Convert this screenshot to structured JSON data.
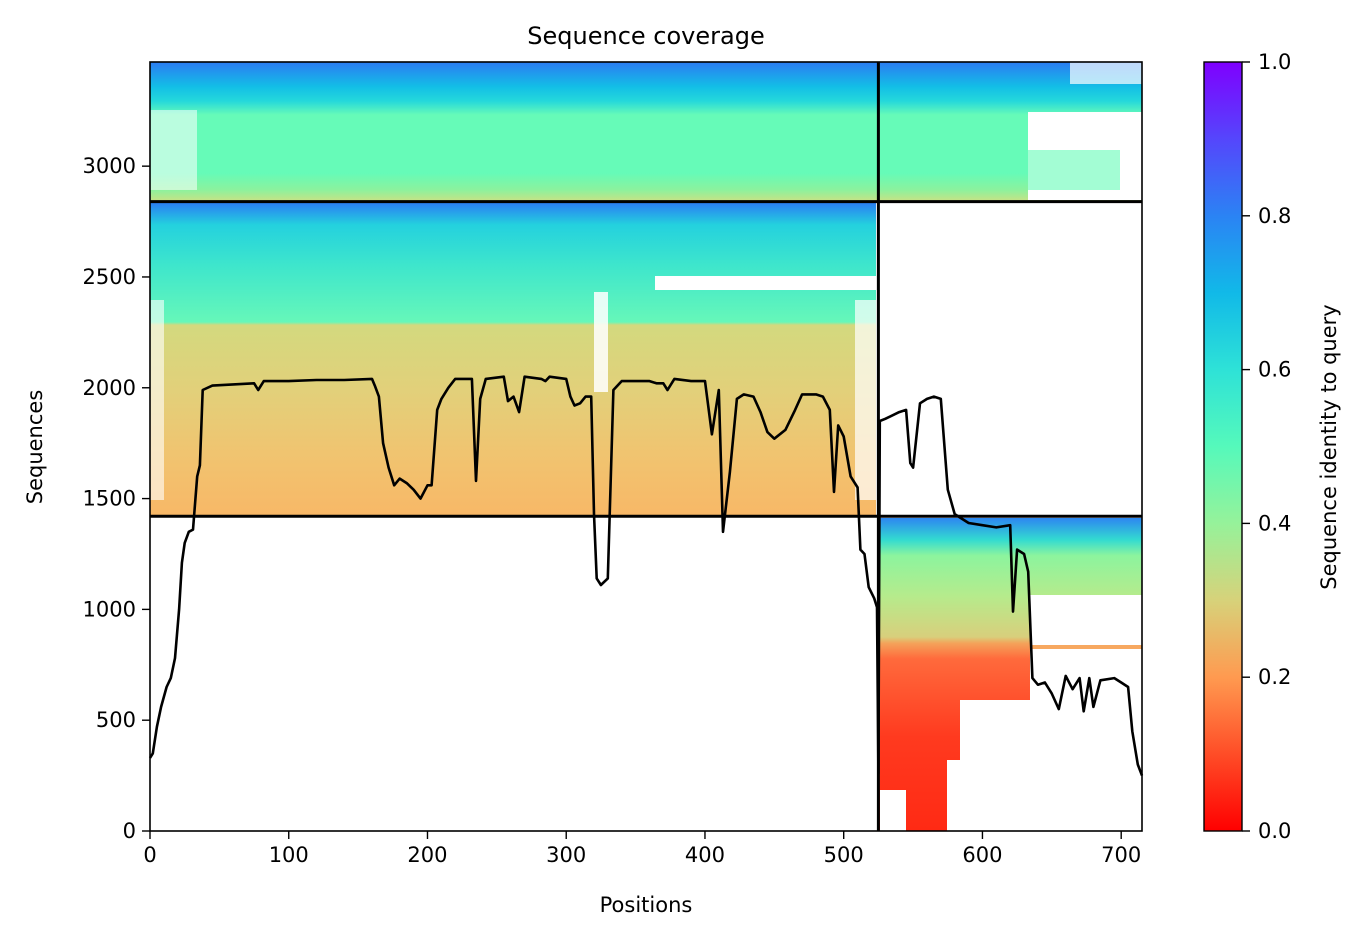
{
  "chart_data": {
    "type": "heatmap",
    "title": "Sequence coverage",
    "xlabel": "Positions",
    "ylabel": "Sequences",
    "xlim": [
      0,
      715
    ],
    "ylim": [
      0,
      3470
    ],
    "x_ticks": [
      "0",
      "100",
      "200",
      "300",
      "400",
      "500",
      "600",
      "700"
    ],
    "y_ticks": [
      "0",
      "500",
      "1000",
      "1500",
      "2000",
      "2500",
      "3000"
    ],
    "x_tick_values": [
      0,
      100,
      200,
      300,
      400,
      500,
      600,
      700
    ],
    "y_tick_values": [
      0,
      500,
      1000,
      1500,
      2000,
      2500,
      3000
    ],
    "colorbar": {
      "label": "Sequence identity to query",
      "colormap": "rainbow_r",
      "range": [
        0.0,
        1.0
      ],
      "ticks": [
        "0.0",
        "0.2",
        "0.4",
        "0.6",
        "0.8",
        "1.0"
      ],
      "tick_values": [
        0.0,
        0.2,
        0.4,
        0.6,
        0.8,
        1.0
      ]
    },
    "chain_boundary_position": 525,
    "group_boundaries_sequences": [
      1420,
      2840
    ],
    "blocks": [
      {
        "group": "bottom",
        "x_range": [
          0,
          525
        ],
        "seq_range": [
          0,
          1420
        ],
        "coverage": "none"
      },
      {
        "group": "bottom",
        "x_range": [
          525,
          715
        ],
        "seq_range": [
          0,
          1420
        ],
        "identity_range": [
          0.05,
          0.85
        ]
      },
      {
        "group": "middle",
        "x_range": [
          0,
          525
        ],
        "seq_range": [
          1420,
          2840
        ],
        "identity_range": [
          0.22,
          0.85
        ]
      },
      {
        "group": "middle",
        "x_range": [
          525,
          715
        ],
        "seq_range": [
          1420,
          2840
        ],
        "coverage": "none"
      },
      {
        "group": "top",
        "x_range": [
          0,
          525
        ],
        "seq_range": [
          2840,
          3470
        ],
        "identity_range": [
          0.35,
          0.85
        ]
      },
      {
        "group": "top",
        "x_range": [
          525,
          715
        ],
        "seq_range": [
          2840,
          3470
        ],
        "identity_range": [
          0.4,
          0.85
        ]
      }
    ],
    "coverage_series": {
      "name": "",
      "color": "#000000",
      "points": [
        [
          0,
          330
        ],
        [
          2,
          350
        ],
        [
          5,
          470
        ],
        [
          8,
          560
        ],
        [
          12,
          650
        ],
        [
          15,
          690
        ],
        [
          18,
          780
        ],
        [
          21,
          1000
        ],
        [
          23,
          1210
        ],
        [
          25,
          1300
        ],
        [
          28,
          1350
        ],
        [
          31,
          1360
        ],
        [
          34,
          1600
        ],
        [
          36,
          1650
        ],
        [
          38,
          1990
        ],
        [
          45,
          2010
        ],
        [
          60,
          2015
        ],
        [
          75,
          2020
        ],
        [
          78,
          1990
        ],
        [
          82,
          2030
        ],
        [
          100,
          2030
        ],
        [
          120,
          2035
        ],
        [
          140,
          2035
        ],
        [
          160,
          2040
        ],
        [
          162,
          2010
        ],
        [
          165,
          1960
        ],
        [
          168,
          1750
        ],
        [
          172,
          1640
        ],
        [
          176,
          1560
        ],
        [
          180,
          1590
        ],
        [
          185,
          1570
        ],
        [
          190,
          1540
        ],
        [
          195,
          1500
        ],
        [
          200,
          1560
        ],
        [
          203,
          1560
        ],
        [
          207,
          1900
        ],
        [
          210,
          1950
        ],
        [
          215,
          2000
        ],
        [
          220,
          2040
        ],
        [
          232,
          2040
        ],
        [
          235,
          1580
        ],
        [
          238,
          1950
        ],
        [
          242,
          2040
        ],
        [
          255,
          2050
        ],
        [
          258,
          1940
        ],
        [
          262,
          1960
        ],
        [
          266,
          1890
        ],
        [
          270,
          2050
        ],
        [
          282,
          2040
        ],
        [
          285,
          2030
        ],
        [
          288,
          2050
        ],
        [
          300,
          2040
        ],
        [
          303,
          1960
        ],
        [
          306,
          1920
        ],
        [
          310,
          1930
        ],
        [
          314,
          1960
        ],
        [
          318,
          1960
        ],
        [
          320,
          1430
        ],
        [
          322,
          1140
        ],
        [
          325,
          1110
        ],
        [
          330,
          1140
        ],
        [
          334,
          1990
        ],
        [
          340,
          2030
        ],
        [
          360,
          2030
        ],
        [
          365,
          2020
        ],
        [
          370,
          2020
        ],
        [
          373,
          1990
        ],
        [
          378,
          2040
        ],
        [
          390,
          2030
        ],
        [
          400,
          2030
        ],
        [
          405,
          1790
        ],
        [
          410,
          1990
        ],
        [
          413,
          1350
        ],
        [
          418,
          1620
        ],
        [
          423,
          1950
        ],
        [
          428,
          1970
        ],
        [
          435,
          1960
        ],
        [
          440,
          1890
        ],
        [
          445,
          1800
        ],
        [
          450,
          1770
        ],
        [
          458,
          1810
        ],
        [
          465,
          1900
        ],
        [
          470,
          1970
        ],
        [
          480,
          1970
        ],
        [
          485,
          1960
        ],
        [
          490,
          1900
        ],
        [
          493,
          1530
        ],
        [
          496,
          1830
        ],
        [
          500,
          1780
        ],
        [
          505,
          1600
        ],
        [
          510,
          1550
        ],
        [
          512,
          1270
        ],
        [
          515,
          1250
        ],
        [
          518,
          1100
        ],
        [
          522,
          1050
        ],
        [
          524,
          1010
        ],
        [
          525,
          260
        ],
        [
          526,
          1850
        ],
        [
          530,
          1860
        ],
        [
          540,
          1890
        ],
        [
          545,
          1900
        ],
        [
          548,
          1660
        ],
        [
          550,
          1640
        ],
        [
          555,
          1930
        ],
        [
          560,
          1950
        ],
        [
          565,
          1960
        ],
        [
          570,
          1950
        ],
        [
          575,
          1540
        ],
        [
          580,
          1430
        ],
        [
          590,
          1390
        ],
        [
          600,
          1380
        ],
        [
          610,
          1370
        ],
        [
          620,
          1380
        ],
        [
          622,
          990
        ],
        [
          625,
          1270
        ],
        [
          630,
          1250
        ],
        [
          633,
          1170
        ],
        [
          636,
          690
        ],
        [
          640,
          660
        ],
        [
          645,
          670
        ],
        [
          650,
          620
        ],
        [
          655,
          550
        ],
        [
          660,
          700
        ],
        [
          665,
          640
        ],
        [
          670,
          690
        ],
        [
          673,
          540
        ],
        [
          677,
          690
        ],
        [
          680,
          560
        ],
        [
          685,
          680
        ],
        [
          695,
          690
        ],
        [
          700,
          670
        ],
        [
          705,
          650
        ],
        [
          708,
          450
        ],
        [
          712,
          300
        ],
        [
          715,
          250
        ]
      ]
    }
  }
}
